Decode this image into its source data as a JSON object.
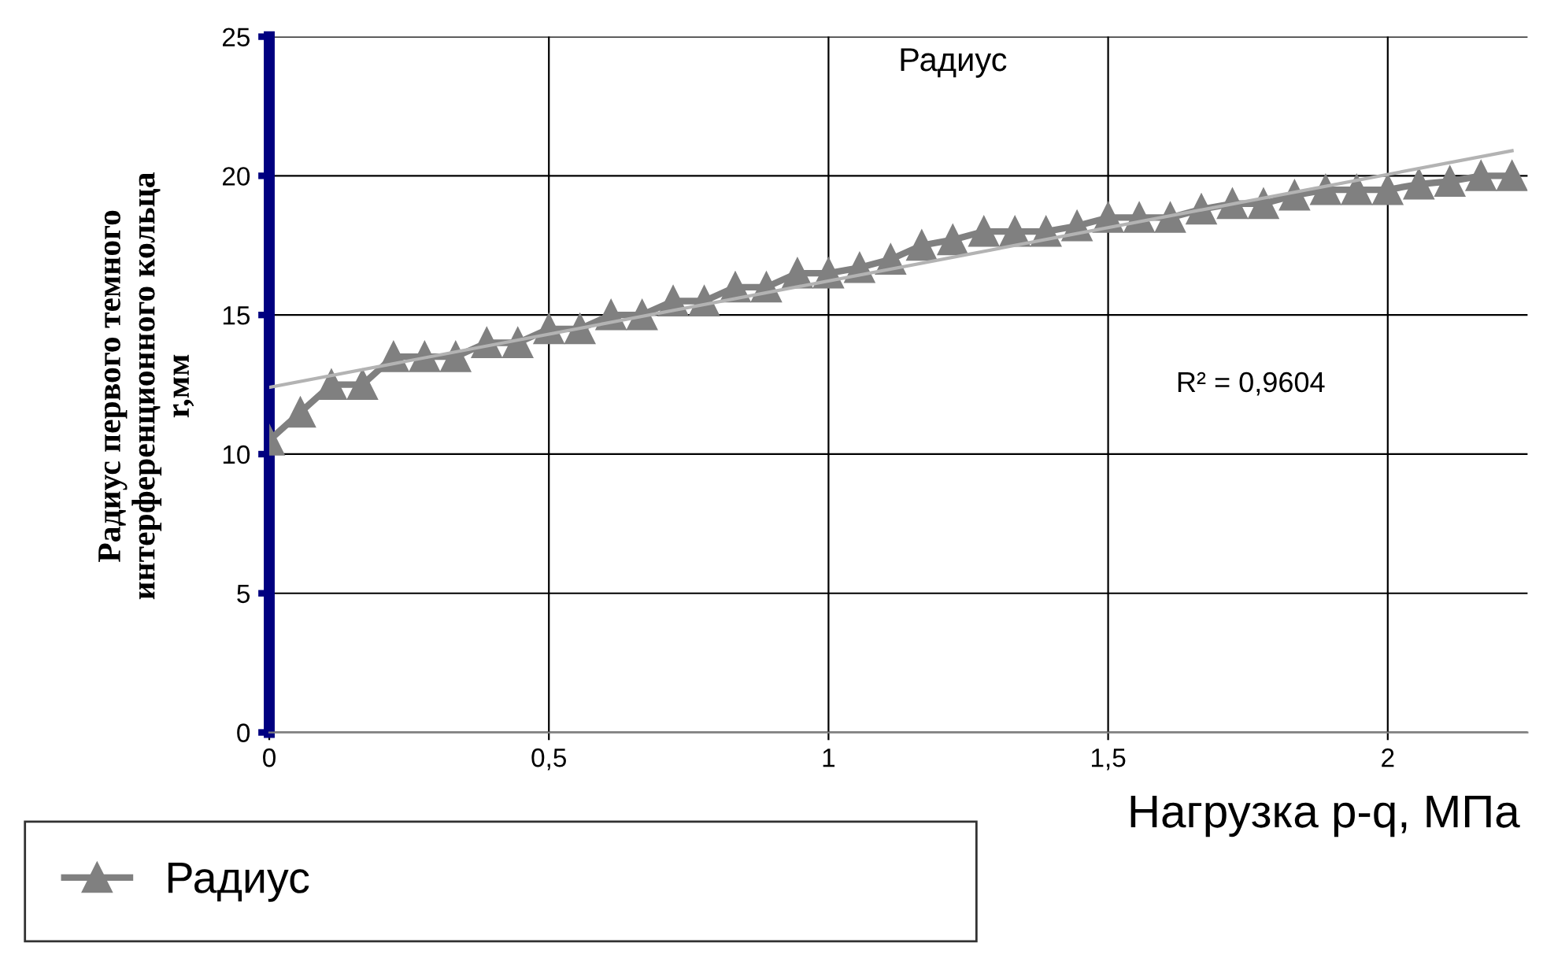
{
  "chart_data": {
    "type": "line",
    "title": "Радиус",
    "xlabel": "Нагрузка p-q, МПа",
    "ylabel": "Радиус первого темного\nинтерференционного кольца\nr,мм",
    "annotations": [
      "R² = 0,9604"
    ],
    "series": [
      {
        "name": "Радиус",
        "color": "#808080",
        "marker": "triangle",
        "x": [
          0,
          0.0556,
          0.1111,
          0.1667,
          0.2222,
          0.2778,
          0.3333,
          0.3889,
          0.4444,
          0.5,
          0.5556,
          0.6111,
          0.6667,
          0.7222,
          0.7778,
          0.8333,
          0.8889,
          0.9444,
          1.0,
          1.0556,
          1.1111,
          1.1667,
          1.2222,
          1.2778,
          1.3333,
          1.3889,
          1.4444,
          1.5,
          1.5556,
          1.6111,
          1.6667,
          1.7222,
          1.7778,
          1.8333,
          1.8889,
          1.9444,
          2.0,
          2.0556,
          2.1111,
          2.1667,
          2.2222
        ],
        "values": [
          10.5,
          11.5,
          12.5,
          12.5,
          13.5,
          13.5,
          13.5,
          14.0,
          14.0,
          14.5,
          14.5,
          15.0,
          15.0,
          15.5,
          15.5,
          16.0,
          16.0,
          16.5,
          16.5,
          16.7,
          17.0,
          17.5,
          17.7,
          18.0,
          18.0,
          18.0,
          18.2,
          18.5,
          18.5,
          18.5,
          18.8,
          19.0,
          19.0,
          19.3,
          19.5,
          19.5,
          19.5,
          19.7,
          19.8,
          20.0,
          20.0
        ]
      },
      {
        "color": "#b3b3b3",
        "marker": "none",
        "x": [
          0,
          2.2222
        ],
        "values": [
          12.4,
          20.9
        ]
      }
    ],
    "xlim": [
      0,
      2.25
    ],
    "xticks": [
      0,
      {
        "value": 0.5,
        "label": "0,5"
      },
      1,
      {
        "value": 1.5,
        "label": "1,5"
      },
      2
    ],
    "ylim": [
      0,
      25
    ],
    "yticks": [
      0,
      5,
      10,
      15,
      20,
      25
    ],
    "grid": true,
    "legend": "bottom left"
  }
}
